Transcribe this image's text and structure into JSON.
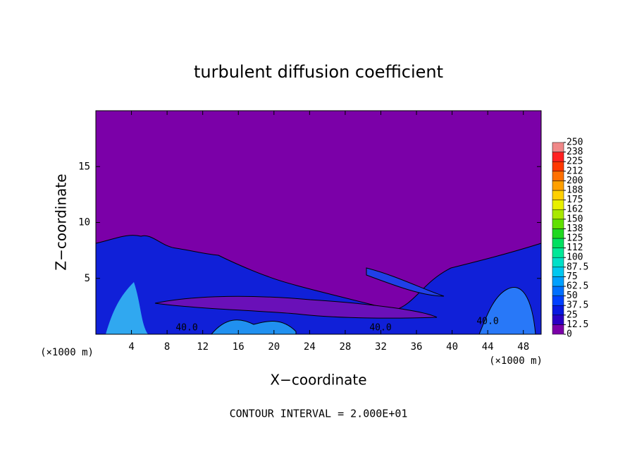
{
  "chart_data": {
    "type": "contour",
    "title": "turbulent diffusion coefficient",
    "x_label": "X−coordinate",
    "y_label": "Z−coordinate",
    "x_unit_left": "(×1000 m)",
    "x_unit_right": "(×1000 m)",
    "footnote": "CONTOUR INTERVAL = 2.000E+01",
    "contour_labels": [
      "40.0",
      "40.0",
      "40.0"
    ],
    "xlim": [
      0,
      50
    ],
    "xticks": [
      4,
      8,
      12,
      16,
      20,
      24,
      28,
      32,
      36,
      40,
      44,
      48
    ],
    "ylim": [
      0,
      20
    ],
    "yticks": [
      5,
      10,
      15
    ],
    "colorbar": {
      "levels": [
        0,
        12.5,
        25,
        37.5,
        50,
        62.5,
        75,
        87.5,
        100,
        {
          "value": 112.5,
          "label": "112"
        },
        125,
        {
          "value": 137.5,
          "label": "138"
        },
        150,
        {
          "value": 162.5,
          "label": "162"
        },
        175,
        {
          "value": 187.5,
          "label": "188"
        },
        200,
        {
          "value": 212.5,
          "label": "212"
        },
        225,
        {
          "value": 237.5,
          "label": "238"
        },
        250
      ],
      "colors": [
        "#7b00a8",
        "#2a00c4",
        "#0818e0",
        "#0040ff",
        "#0070ff",
        "#00a0ff",
        "#00c8f0",
        "#00e0c8",
        "#00e898",
        "#00e060",
        "#20d820",
        "#60e000",
        "#a8e800",
        "#e8f000",
        "#ffd000",
        "#ffa000",
        "#ff7000",
        "#ff3800",
        "#ff2020",
        "#f08888"
      ]
    }
  }
}
